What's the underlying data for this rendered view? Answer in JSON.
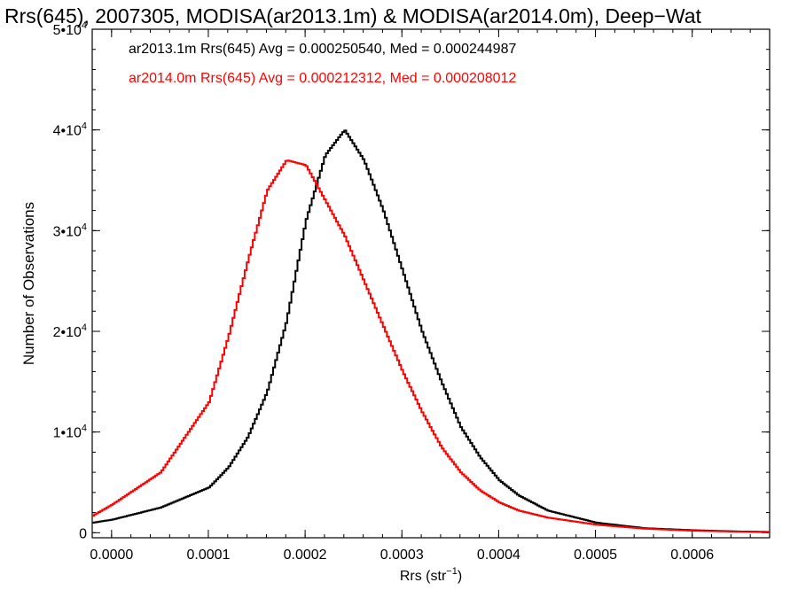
{
  "chart_data": {
    "type": "line",
    "title": "Rrs(645), 2007305, MODISA(ar2013.1m) & MODISA(ar2014.0m), Deep−Wat",
    "xlabel": "Rrs (str",
    "xlabel_sup": "−1",
    "xlabel_end": ")",
    "ylabel": "Number of Observations",
    "xlim": [
      -2e-05,
      0.00068
    ],
    "ylim": [
      -500,
      50000
    ],
    "x_ticks": [
      "0.0000",
      "0.0001",
      "0.0002",
      "0.0003",
      "0.0004",
      "0.0005",
      "0.0006"
    ],
    "x_tick_values": [
      0.0,
      0.0001,
      0.0002,
      0.0003,
      0.0004,
      0.0005,
      0.0006
    ],
    "y_ticks": [
      {
        "value": 0,
        "mantissa": "0",
        "exponent": ""
      },
      {
        "value": 10000,
        "mantissa": "1•10",
        "exponent": "4"
      },
      {
        "value": 20000,
        "mantissa": "2•10",
        "exponent": "4"
      },
      {
        "value": 30000,
        "mantissa": "3•10",
        "exponent": "4"
      },
      {
        "value": 40000,
        "mantissa": "4•10",
        "exponent": "4"
      },
      {
        "value": 50000,
        "mantissa": "5•10",
        "exponent": "4"
      }
    ],
    "series": [
      {
        "name": "ar2013.1m",
        "color": "#000000",
        "legend_text": "ar2013.1m Rrs(645) Avg = 0.000250540, Med = 0.000244987",
        "x": [
          -2e-05,
          0.0,
          5e-05,
          0.0001,
          0.00012,
          0.00014,
          0.00016,
          0.00018,
          0.0002,
          0.00022,
          0.00024,
          0.00026,
          0.00028,
          0.0003,
          0.00032,
          0.00034,
          0.00036,
          0.00038,
          0.0004,
          0.00042,
          0.00045,
          0.0005,
          0.00055,
          0.0006,
          0.00065,
          0.00068
        ],
        "y": [
          1000,
          1300,
          2500,
          4500,
          6500,
          9500,
          14000,
          21000,
          31000,
          37500,
          40000,
          37000,
          32000,
          26000,
          20000,
          15000,
          10500,
          7500,
          5200,
          3700,
          2200,
          1000,
          450,
          250,
          120,
          80
        ]
      },
      {
        "name": "ar2014.0m",
        "color": "#ff0000",
        "legend_text": "ar2014.0m Rrs(645) Avg = 0.000212312, Med = 0.000208012",
        "x": [
          -2e-05,
          0.0,
          5e-05,
          0.0001,
          0.00012,
          0.00014,
          0.00016,
          0.00018,
          0.0002,
          0.00022,
          0.00024,
          0.00026,
          0.00028,
          0.0003,
          0.00032,
          0.00034,
          0.00036,
          0.00038,
          0.0004,
          0.00042,
          0.00045,
          0.0005,
          0.00055,
          0.0006,
          0.00065,
          0.00068
        ],
        "y": [
          1700,
          2800,
          6000,
          13000,
          19500,
          27000,
          34000,
          37000,
          36500,
          33000,
          29500,
          25000,
          20500,
          16000,
          12000,
          8500,
          6000,
          4200,
          3000,
          2200,
          1500,
          800,
          400,
          200,
          100,
          60
        ]
      }
    ],
    "grid": false,
    "legend_position": "top-left"
  }
}
